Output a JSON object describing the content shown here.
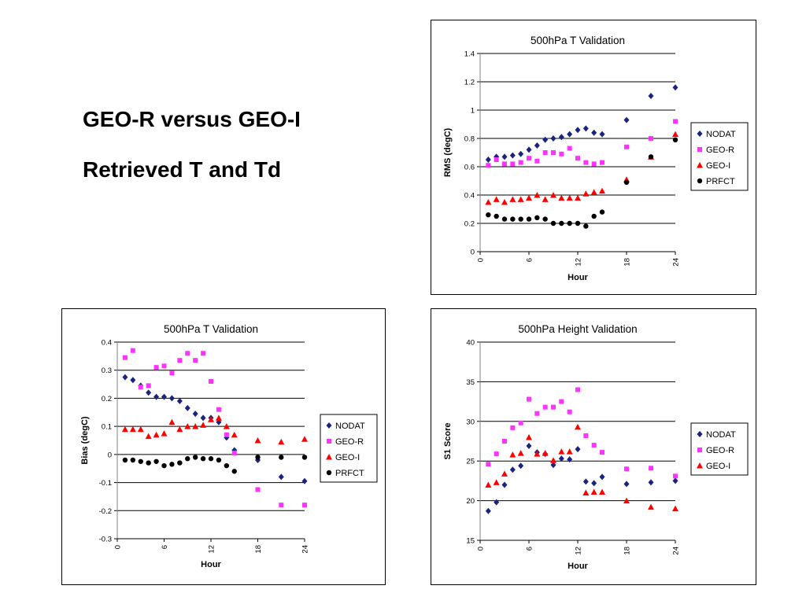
{
  "slide": {
    "title_lines": [
      "GEO-R versus GEO-I",
      "Retrieved T and Td"
    ]
  },
  "colors": {
    "NODAT": "#1a237e",
    "GEO-R": "#ff33ff",
    "GEO-I": "#ff0000",
    "PRFCT": "#000000",
    "grid": "#000000"
  },
  "chart_data": [
    {
      "id": "rms",
      "type": "scatter",
      "title": "500hPa T Validation",
      "xlabel": "Hour",
      "ylabel": "RMS (degC)",
      "xlim": [
        0,
        24
      ],
      "ylim": [
        0,
        1.4
      ],
      "xticks": [
        0,
        6,
        12,
        18,
        24
      ],
      "yticks": [
        0,
        0.2,
        0.4,
        0.6,
        0.8,
        1,
        1.2,
        1.4
      ],
      "grid": true,
      "legend_position": "right",
      "series": [
        {
          "name": "NODAT",
          "marker": "diamond",
          "x": [
            1,
            2,
            3,
            4,
            5,
            6,
            7,
            8,
            9,
            10,
            11,
            12,
            13,
            14,
            15,
            18,
            21,
            24
          ],
          "y": [
            0.65,
            0.67,
            0.67,
            0.68,
            0.69,
            0.72,
            0.75,
            0.79,
            0.8,
            0.81,
            0.83,
            0.86,
            0.87,
            0.84,
            0.83,
            0.93,
            1.1,
            1.16
          ]
        },
        {
          "name": "GEO-R",
          "marker": "square",
          "x": [
            1,
            2,
            3,
            4,
            5,
            6,
            7,
            8,
            9,
            10,
            11,
            12,
            13,
            14,
            15,
            18,
            21,
            24
          ],
          "y": [
            0.61,
            0.65,
            0.62,
            0.62,
            0.63,
            0.66,
            0.64,
            0.7,
            0.7,
            0.69,
            0.73,
            0.66,
            0.63,
            0.62,
            0.63,
            0.74,
            0.8,
            0.92
          ]
        },
        {
          "name": "GEO-I",
          "marker": "triangle",
          "x": [
            1,
            2,
            3,
            4,
            5,
            6,
            7,
            8,
            9,
            10,
            11,
            12,
            13,
            14,
            15,
            18,
            21,
            24
          ],
          "y": [
            0.35,
            0.37,
            0.35,
            0.37,
            0.37,
            0.38,
            0.4,
            0.37,
            0.4,
            0.38,
            0.38,
            0.38,
            0.41,
            0.42,
            0.43,
            0.51,
            0.67,
            0.83
          ]
        },
        {
          "name": "PRFCT",
          "marker": "circle",
          "x": [
            1,
            2,
            3,
            4,
            5,
            6,
            7,
            8,
            9,
            10,
            11,
            12,
            13,
            14,
            15,
            18,
            21,
            24
          ],
          "y": [
            0.26,
            0.25,
            0.23,
            0.23,
            0.23,
            0.23,
            0.24,
            0.23,
            0.2,
            0.2,
            0.2,
            0.2,
            0.18,
            0.25,
            0.28,
            0.49,
            0.67,
            0.79
          ]
        }
      ]
    },
    {
      "id": "bias",
      "type": "scatter",
      "title": "500hPa T Validation",
      "xlabel": "Hour",
      "ylabel": "Bias (degC)",
      "xlim": [
        0,
        24
      ],
      "ylim": [
        -0.3,
        0.4
      ],
      "xticks": [
        0,
        6,
        12,
        18,
        24
      ],
      "yticks": [
        -0.3,
        -0.2,
        -0.1,
        0,
        0.1,
        0.2,
        0.3,
        0.4
      ],
      "grid": true,
      "legend_position": "right",
      "series": [
        {
          "name": "NODAT",
          "marker": "diamond",
          "x": [
            1,
            2,
            3,
            4,
            5,
            6,
            7,
            8,
            9,
            10,
            11,
            12,
            13,
            14,
            15,
            18,
            21,
            24
          ],
          "y": [
            0.275,
            0.265,
            0.245,
            0.22,
            0.205,
            0.205,
            0.2,
            0.19,
            0.165,
            0.145,
            0.13,
            0.13,
            0.115,
            0.06,
            0.015,
            -0.02,
            -0.08,
            -0.095
          ]
        },
        {
          "name": "GEO-R",
          "marker": "square",
          "x": [
            1,
            2,
            3,
            4,
            5,
            6,
            7,
            8,
            9,
            10,
            11,
            12,
            13,
            14,
            15,
            18,
            21,
            24
          ],
          "y": [
            0.345,
            0.37,
            0.24,
            0.245,
            0.31,
            0.315,
            0.29,
            0.335,
            0.36,
            0.335,
            0.36,
            0.26,
            0.16,
            0.07,
            0.005,
            -0.125,
            -0.18,
            -0.18
          ]
        },
        {
          "name": "GEO-I",
          "marker": "triangle",
          "x": [
            1,
            2,
            3,
            4,
            5,
            6,
            7,
            8,
            9,
            10,
            11,
            12,
            13,
            14,
            15,
            18,
            21,
            24
          ],
          "y": [
            0.09,
            0.09,
            0.09,
            0.065,
            0.07,
            0.075,
            0.115,
            0.09,
            0.1,
            0.1,
            0.105,
            0.125,
            0.13,
            0.1,
            0.07,
            0.05,
            0.045,
            0.055
          ]
        },
        {
          "name": "PRFCT",
          "marker": "circle",
          "x": [
            1,
            2,
            3,
            4,
            5,
            6,
            7,
            8,
            9,
            10,
            11,
            12,
            13,
            14,
            15,
            18,
            21,
            24
          ],
          "y": [
            -0.02,
            -0.02,
            -0.025,
            -0.03,
            -0.025,
            -0.04,
            -0.035,
            -0.03,
            -0.015,
            -0.01,
            -0.015,
            -0.015,
            -0.02,
            -0.04,
            -0.06,
            -0.01,
            -0.01,
            -0.01
          ]
        }
      ]
    },
    {
      "id": "s1",
      "type": "scatter",
      "title": "500hPa Height Validation",
      "xlabel": "Hour",
      "ylabel": "S1 Score",
      "xlim": [
        0,
        24
      ],
      "ylim": [
        15,
        40
      ],
      "xticks": [
        0,
        6,
        12,
        18,
        24
      ],
      "yticks": [
        15,
        20,
        25,
        30,
        35,
        40
      ],
      "grid": true,
      "legend_position": "right",
      "series": [
        {
          "name": "NODAT",
          "marker": "diamond",
          "x": [
            1,
            2,
            3,
            4,
            5,
            6,
            7,
            8,
            9,
            10,
            11,
            12,
            13,
            14,
            15,
            18,
            21,
            24
          ],
          "y": [
            18.7,
            19.8,
            22.0,
            23.9,
            24.4,
            26.9,
            26.1,
            25.9,
            24.5,
            25.3,
            25.2,
            26.5,
            22.4,
            22.2,
            23.0,
            22.1,
            22.3,
            22.5
          ]
        },
        {
          "name": "GEO-R",
          "marker": "square",
          "x": [
            1,
            2,
            3,
            4,
            5,
            6,
            7,
            8,
            9,
            10,
            11,
            12,
            13,
            14,
            15,
            18,
            21,
            24
          ],
          "y": [
            24.6,
            25.9,
            27.5,
            29.2,
            29.8,
            32.8,
            31.0,
            31.8,
            31.8,
            32.5,
            31.2,
            34.0,
            28.2,
            27.0,
            26.1,
            24.0,
            24.1,
            23.1
          ]
        },
        {
          "name": "GEO-I",
          "marker": "triangle",
          "x": [
            1,
            2,
            3,
            4,
            5,
            6,
            7,
            8,
            9,
            10,
            11,
            12,
            13,
            14,
            15,
            18,
            21,
            24
          ],
          "y": [
            22.0,
            22.3,
            23.4,
            25.8,
            26.0,
            28.0,
            25.9,
            26.0,
            25.1,
            26.2,
            26.2,
            29.3,
            21.0,
            21.1,
            21.1,
            20.0,
            19.2,
            19.0
          ]
        }
      ]
    }
  ]
}
